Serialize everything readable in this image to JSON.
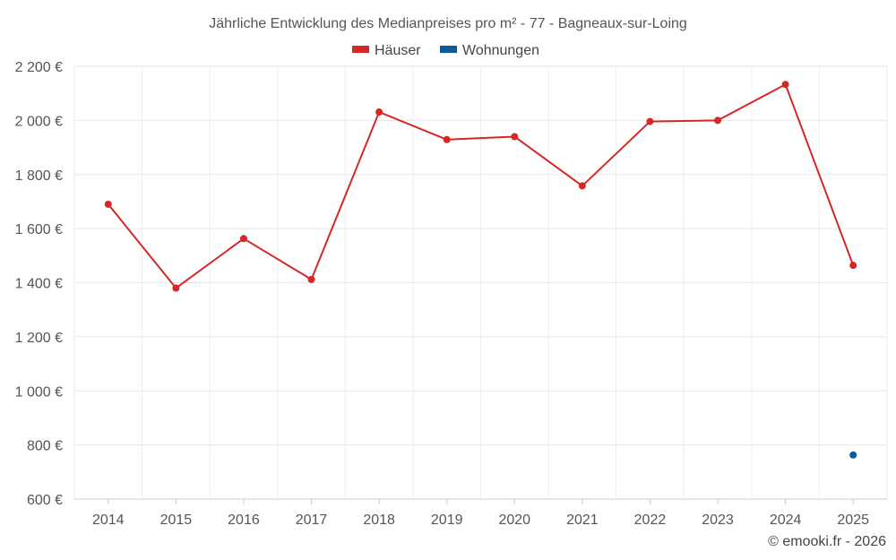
{
  "chart_data": {
    "type": "line",
    "title": "Jährliche Entwicklung des Medianpreises pro m² - 77 - Bagneaux-sur-Loing",
    "categories": [
      "2014",
      "2015",
      "2016",
      "2017",
      "2018",
      "2019",
      "2020",
      "2021",
      "2022",
      "2023",
      "2024",
      "2025"
    ],
    "series": [
      {
        "name": "Häuser",
        "color": "#d62728",
        "values": [
          1690,
          1380,
          1563,
          1412,
          2031,
          1929,
          1940,
          1758,
          1996,
          2000,
          2133,
          1464
        ]
      },
      {
        "name": "Wohnungen",
        "color": "#0a5b9c",
        "values": [
          null,
          null,
          null,
          null,
          null,
          null,
          null,
          null,
          null,
          null,
          null,
          763
        ]
      }
    ],
    "ylim": [
      600,
      2200
    ],
    "yticks": [
      600,
      800,
      1000,
      1200,
      1400,
      1600,
      1800,
      2000,
      2200
    ],
    "ytick_labels": [
      "600 €",
      "800 €",
      "1 000 €",
      "1 200 €",
      "1 400 €",
      "1 600 €",
      "1 800 €",
      "2 000 €",
      "2 200 €"
    ],
    "grid": true,
    "legend": "top-center",
    "xlabel": "",
    "ylabel": ""
  },
  "credit": "© emooki.fr - 2026"
}
